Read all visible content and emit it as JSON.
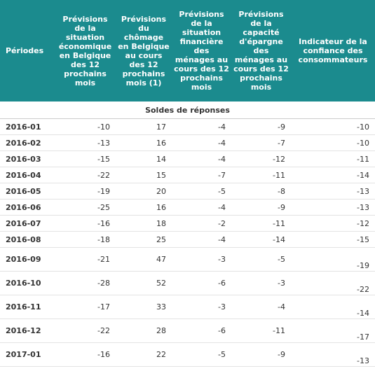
{
  "header": {
    "columns": [
      "Périodes",
      "Prévisions de la situation économique en Belgique des 12 prochains mois",
      "Prévisions du chômage en Belgique au cours des 12 prochains mois (1)",
      "Prévisions de la situation financière des ménages au cours des 12 prochains mois",
      "Prévisions de la capacité d'épargne des ménages au cours des 12 prochains mois",
      "Indicateur de la confiance des consommateurs"
    ]
  },
  "subheader": "Soldes de réponses",
  "table": {
    "rows": [
      [
        "2016-01",
        -10,
        17,
        -4,
        -9,
        -10
      ],
      [
        "2016-02",
        -13,
        16,
        -4,
        -7,
        -10
      ],
      [
        "2016-03",
        -15,
        14,
        -4,
        -12,
        -11
      ],
      [
        "2016-04",
        -22,
        15,
        -7,
        -11,
        -14
      ],
      [
        "2016-05",
        -19,
        20,
        -5,
        -8,
        -13
      ],
      [
        "2016-06",
        -25,
        16,
        -4,
        -9,
        -13
      ],
      [
        "2016-07",
        -16,
        18,
        -2,
        -11,
        -12
      ],
      [
        "2016-08",
        -18,
        25,
        -4,
        -14,
        -15
      ],
      [
        "2016-09",
        -21,
        47,
        -3,
        -5,
        -19
      ],
      [
        "2016-10",
        -28,
        52,
        -6,
        -3,
        -22
      ],
      [
        "2016-11",
        -17,
        33,
        -3,
        -4,
        -14
      ],
      [
        "2016-12",
        -22,
        28,
        -6,
        -11,
        -17
      ],
      [
        "2017-01",
        -16,
        22,
        -5,
        -9,
        -13
      ]
    ]
  }
}
